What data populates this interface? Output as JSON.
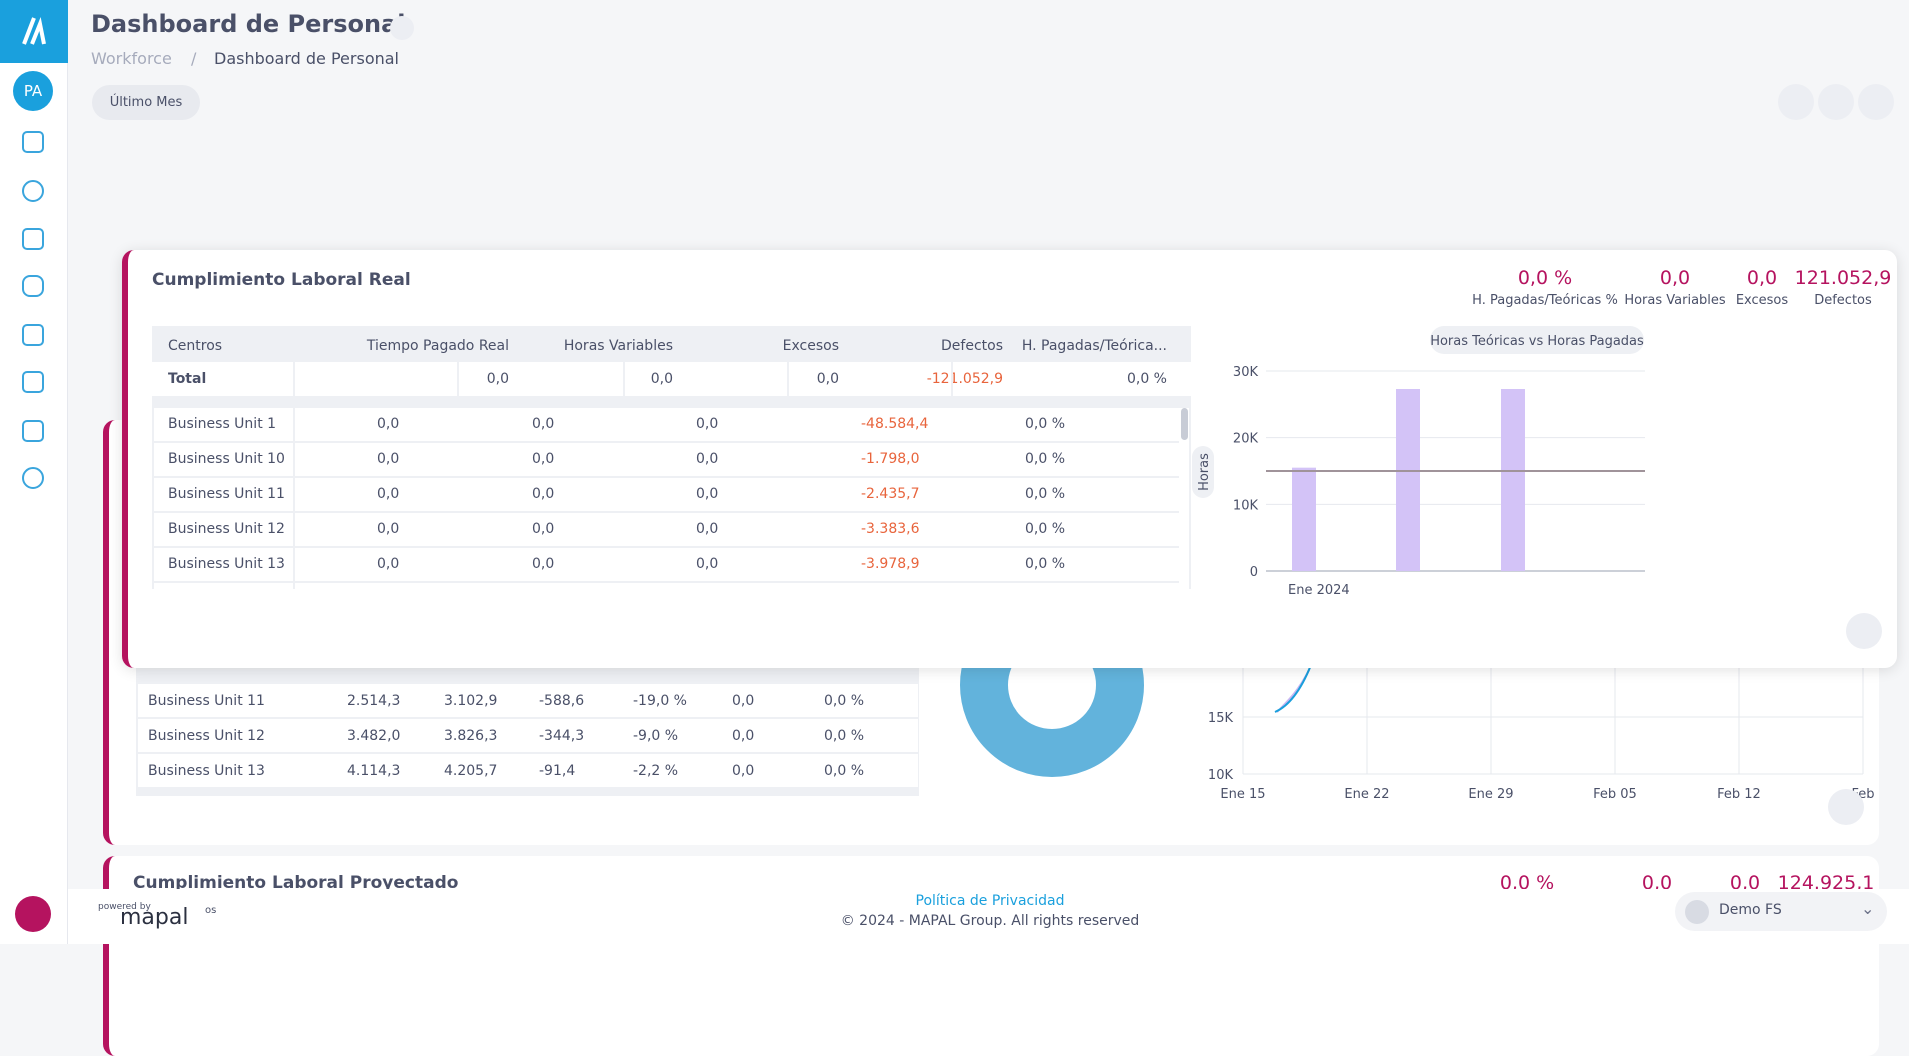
{
  "header": {
    "title": "Dashboard de Personal",
    "breadcrumb": [
      "Workforce",
      "Dashboard de Personal"
    ],
    "filter": "Último Mes"
  },
  "sidebar": {
    "avatar": "PA"
  },
  "card_real": {
    "title": "Cumplimiento Laboral Real",
    "kpis": [
      {
        "value": "0,0 %",
        "label": "H. Pagadas/Teóricas %"
      },
      {
        "value": "0,0",
        "label": "Horas Variables"
      },
      {
        "value": "0,0",
        "label": "Excesos"
      },
      {
        "value": "121.052,9",
        "label": "Defectos"
      }
    ],
    "table": {
      "columns": [
        "Centros",
        "Tiempo Pagado Real",
        "Horas Variables",
        "Excesos",
        "Defectos",
        "H. Pagadas/Teórica..."
      ],
      "total": [
        "Total",
        "0,0",
        "0,0",
        "0,0",
        "-121.052,9",
        "0,0 %"
      ],
      "rows": [
        [
          "Business Unit 1",
          "0,0",
          "0,0",
          "0,0",
          "-48.584,4",
          "0,0 %"
        ],
        [
          "Business Unit 10",
          "0,0",
          "0,0",
          "0,0",
          "-1.798,0",
          "0,0 %"
        ],
        [
          "Business Unit 11",
          "0,0",
          "0,0",
          "0,0",
          "-2.435,7",
          "0,0 %"
        ],
        [
          "Business Unit 12",
          "0,0",
          "0,0",
          "0,0",
          "-3.383,6",
          "0,0 %"
        ],
        [
          "Business Unit 13",
          "0,0",
          "0,0",
          "0,0",
          "-3.978,9",
          "0,0 %"
        ]
      ]
    },
    "chart": {
      "type": "bar",
      "title": "Horas Teóricas vs Horas Pagadas",
      "y_label": "Horas",
      "categories": [
        "Ene 2024",
        null,
        null
      ],
      "values": [
        15500,
        27300,
        27300
      ],
      "color": "#d3c3f7",
      "line_values": [
        15000,
        15000,
        15000
      ],
      "line_color": "#a0939a",
      "ylim": [
        0,
        30000
      ],
      "yticks": [
        0,
        {
          "value": 10000,
          "label": "10K"
        },
        {
          "value": 20000,
          "label": "20K"
        },
        {
          "value": 30000,
          "label": "30K"
        }
      ],
      "grid": true
    }
  },
  "card_background": {
    "rows": [
      [
        "Business Unit 11",
        "2.514,3",
        "3.102,9",
        "-588,6",
        "-19,0 %",
        "0,0",
        "0,0 %"
      ],
      [
        "Business Unit 12",
        "3.482,0",
        "3.826,3",
        "-344,3",
        "-9,0 %",
        "0,0",
        "0,0 %"
      ],
      [
        "Business Unit 13",
        "4.114,3",
        "4.205,7",
        "-91,4",
        "-2,2 %",
        "0,0",
        "0,0 %"
      ]
    ],
    "line_chart": {
      "yticks": [
        "15K",
        "10K"
      ],
      "xticks": [
        "Ene 15",
        "Ene 22",
        "Ene 29",
        "Feb 05",
        "Feb 12",
        "Feb"
      ]
    }
  },
  "card_projected": {
    "title": "Cumplimiento Laboral Proyectado",
    "kpis": [
      "0,0 %",
      "0,0",
      "0,0",
      "124.925,1"
    ]
  },
  "footer": {
    "privacy": "Política de Privacidad",
    "copyright": "© 2024 - MAPAL Group. All rights reserved",
    "powered_by": "powered by",
    "brand": "mapal",
    "brand_suffix": "os"
  },
  "workspace": "Demo FS"
}
